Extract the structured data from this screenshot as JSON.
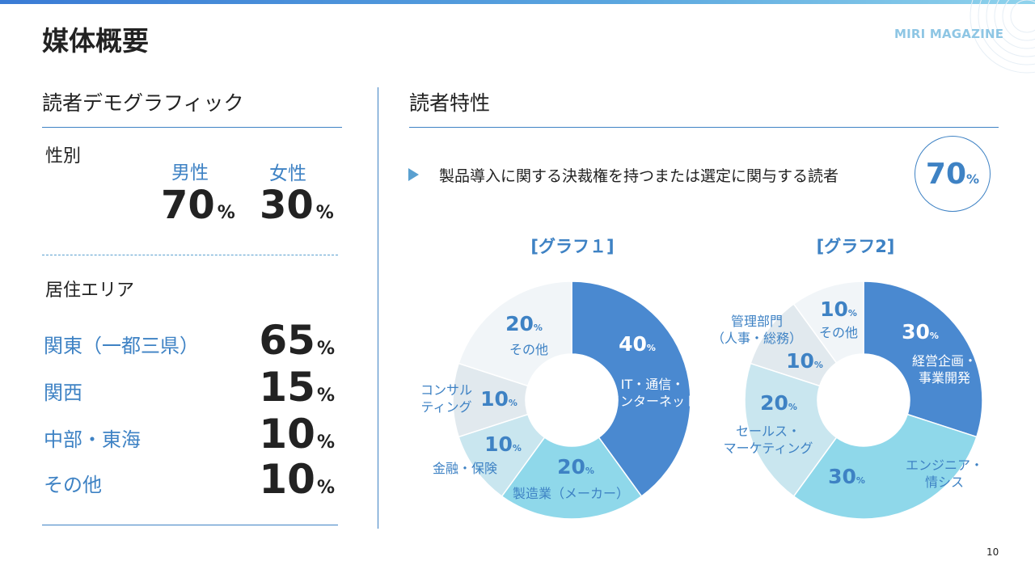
{
  "header": {
    "title": "媒体概要",
    "brand": "MIRI MAGAZINE"
  },
  "demographics": {
    "title": "読者デモグラフィック",
    "gender": {
      "label": "性別",
      "male": {
        "label": "男性",
        "value": "70",
        "unit": "%"
      },
      "female": {
        "label": "女性",
        "value": "30",
        "unit": "%"
      }
    },
    "residence": {
      "label": "居住エリア",
      "items": [
        {
          "name": "関東（一都三県）",
          "value": "65",
          "unit": "%"
        },
        {
          "name": "関西",
          "value": "15",
          "unit": "%"
        },
        {
          "name": "中部・東海",
          "value": "10",
          "unit": "%"
        },
        {
          "name": "その他",
          "value": "10",
          "unit": "%"
        }
      ]
    }
  },
  "characteristics": {
    "title": "読者特性",
    "bullet": "製品導入に関する決裁権を持つまたは選定に関与する読者",
    "badge": {
      "value": "70",
      "unit": "%"
    }
  },
  "chart_data": [
    {
      "type": "pie",
      "title": "[グラフ１]",
      "categories": [
        "IT・通信・インターネット",
        "製造業（メーカー）",
        "金融・保険",
        "コンサルティング",
        "その他"
      ],
      "values": [
        40,
        20,
        10,
        10,
        20
      ],
      "unit": "%",
      "colors": [
        "#4a89d0",
        "#8fd8ea",
        "#c9e6ef",
        "#e1e9ee",
        "#f1f5f8"
      ],
      "label_colors": [
        "#ffffff",
        "#3e82c4",
        "#3e82c4",
        "#3e82c4",
        "#3e82c4"
      ],
      "name_lines": [
        [
          "IT・通信・",
          "インターネット"
        ],
        [
          "製造業（メーカー）"
        ],
        [
          "金融・保険"
        ],
        [
          "コンサル",
          "ティング"
        ],
        [
          "その他"
        ]
      ]
    },
    {
      "type": "pie",
      "title": "[グラフ2]",
      "categories": [
        "経営企画・事業開発",
        "エンジニア・情シス",
        "セールス・マーケティング",
        "管理部門（人事・総務）",
        "その他"
      ],
      "values": [
        30,
        30,
        20,
        10,
        10
      ],
      "unit": "%",
      "colors": [
        "#4a89d0",
        "#8fd8ea",
        "#c9e6ef",
        "#e1e9ee",
        "#f1f5f8"
      ],
      "label_colors": [
        "#ffffff",
        "#3e82c4",
        "#3e82c4",
        "#3e82c4",
        "#3e82c4"
      ],
      "name_lines": [
        [
          "経営企画・",
          "事業開発"
        ],
        [
          "エンジニア・",
          "情シス"
        ],
        [
          "セールス・",
          "マーケティング"
        ],
        [
          "管理部門",
          "（人事・総務）"
        ],
        [
          "その他"
        ]
      ]
    }
  ],
  "footer": {
    "page_number": "10"
  }
}
